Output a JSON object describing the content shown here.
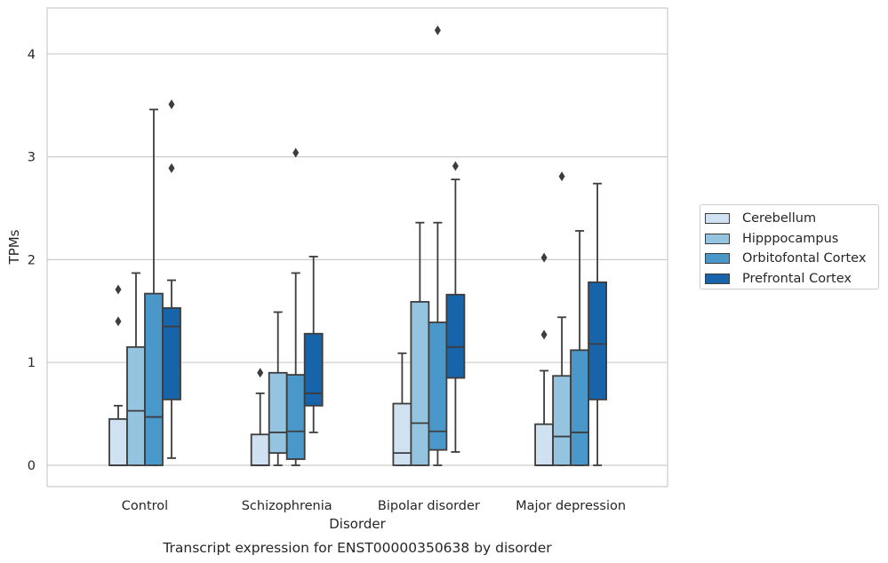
{
  "chart_data": {
    "type": "box",
    "title": "Transcript expression for ENST00000350638 by disorder",
    "xlabel": "Disorder",
    "ylabel": "TPMs",
    "ylim": [
      -0.2,
      4.45
    ],
    "yticks": [
      0,
      1,
      2,
      3,
      4
    ],
    "grid": "horizontal",
    "legend_position": "right",
    "categories": [
      "Control",
      "Schizophrenia",
      "Bipolar disorder",
      "Major depression"
    ],
    "series": [
      {
        "name": "Cerebellum",
        "color": "#d0e1f2",
        "boxes": [
          {
            "whislo": 0.0,
            "q1": 0.0,
            "med": 0.0,
            "q3": 0.45,
            "whishi": 0.58,
            "fliers": [
              1.71,
              1.4
            ]
          },
          {
            "whislo": 0.0,
            "q1": 0.0,
            "med": 0.0,
            "q3": 0.3,
            "whishi": 0.7,
            "fliers": [
              0.9
            ]
          },
          {
            "whislo": 0.0,
            "q1": 0.0,
            "med": 0.12,
            "q3": 0.6,
            "whishi": 1.09,
            "fliers": []
          },
          {
            "whislo": 0.0,
            "q1": 0.0,
            "med": 0.0,
            "q3": 0.4,
            "whishi": 0.92,
            "fliers": [
              2.02,
              1.27
            ]
          }
        ]
      },
      {
        "name": "Hipppocampus",
        "color": "#94c4df",
        "boxes": [
          {
            "whislo": 0.0,
            "q1": 0.0,
            "med": 0.53,
            "q3": 1.15,
            "whishi": 1.87,
            "fliers": []
          },
          {
            "whislo": 0.0,
            "q1": 0.12,
            "med": 0.32,
            "q3": 0.9,
            "whishi": 1.49,
            "fliers": []
          },
          {
            "whislo": 0.0,
            "q1": 0.0,
            "med": 0.41,
            "q3": 1.59,
            "whishi": 2.36,
            "fliers": []
          },
          {
            "whislo": 0.0,
            "q1": 0.0,
            "med": 0.28,
            "q3": 0.87,
            "whishi": 1.44,
            "fliers": [
              2.81
            ]
          }
        ]
      },
      {
        "name": "Orbitofontal Cortex",
        "color": "#4a98c9",
        "boxes": [
          {
            "whislo": 0.0,
            "q1": 0.0,
            "med": 0.47,
            "q3": 1.67,
            "whishi": 3.46,
            "fliers": []
          },
          {
            "whislo": 0.0,
            "q1": 0.06,
            "med": 0.33,
            "q3": 0.88,
            "whishi": 1.87,
            "fliers": [
              3.04
            ]
          },
          {
            "whislo": 0.0,
            "q1": 0.15,
            "med": 0.33,
            "q3": 1.39,
            "whishi": 2.36,
            "fliers": [
              4.23
            ]
          },
          {
            "whislo": 0.0,
            "q1": 0.0,
            "med": 0.32,
            "q3": 1.12,
            "whishi": 2.28,
            "fliers": []
          }
        ]
      },
      {
        "name": "Prefrontal Cortex",
        "color": "#1764ab",
        "boxes": [
          {
            "whislo": 0.07,
            "q1": 0.64,
            "med": 1.35,
            "q3": 1.53,
            "whishi": 1.8,
            "fliers": [
              3.51,
              2.89
            ]
          },
          {
            "whislo": 0.32,
            "q1": 0.58,
            "med": 0.7,
            "q3": 1.28,
            "whishi": 2.03,
            "fliers": []
          },
          {
            "whislo": 0.13,
            "q1": 0.85,
            "med": 1.15,
            "q3": 1.66,
            "whishi": 2.78,
            "fliers": [
              2.91
            ]
          },
          {
            "whislo": 0.0,
            "q1": 0.64,
            "med": 1.18,
            "q3": 1.78,
            "whishi": 2.74,
            "fliers": []
          }
        ]
      }
    ]
  }
}
